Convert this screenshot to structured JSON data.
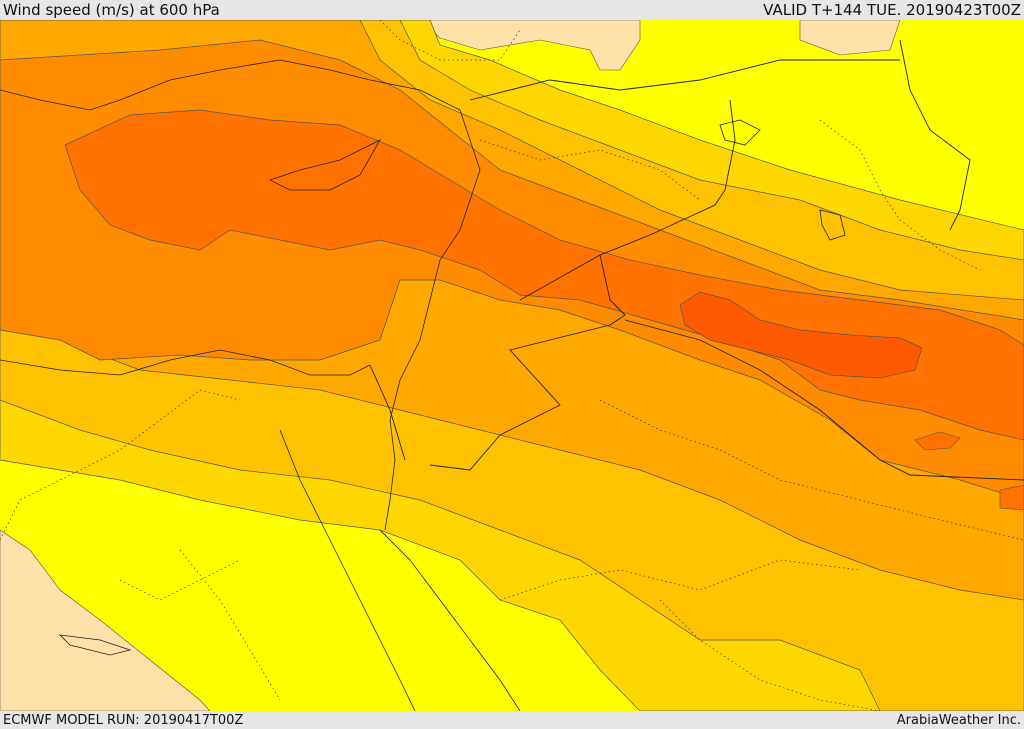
{
  "header": {
    "title": "Wind speed (m/s) at 600 hPa",
    "valid": "VALID T+144 TUE. 20190423T00Z"
  },
  "footer": {
    "model_run": "ECMWF MODEL RUN: 20190417T00Z",
    "credit": "ArabiaWeather Inc."
  },
  "colors": {
    "ocean_land_base": "#ffff00",
    "level_1": "#ffe08a",
    "level_2": "#ffd700",
    "level_3": "#ffc200",
    "level_4": "#ffa800",
    "level_5": "#ff8c00",
    "level_6": "#ff7200",
    "level_7": "#ff5a00",
    "low_wind": "#ffe0a8"
  }
}
